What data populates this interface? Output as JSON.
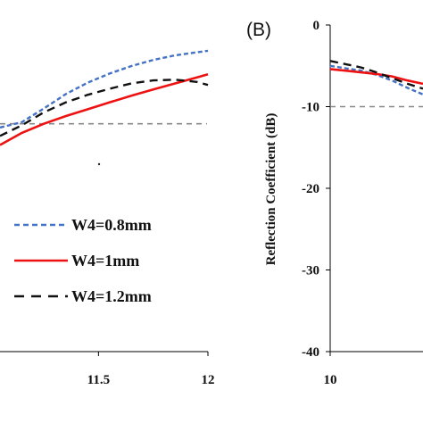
{
  "chart_data": [
    {
      "panel": "A",
      "type": "line",
      "title": "",
      "xlabel": "",
      "ylabel": "",
      "x_ticks": [
        "11.5",
        "12"
      ],
      "xlim": [
        11.05,
        12
      ],
      "ylim": [
        -40,
        3
      ],
      "reference_line": {
        "y": -10,
        "style": "dashed",
        "color": "#888888"
      },
      "series": [
        {
          "name": "W4=0.8mm",
          "color": "#4472c4",
          "dash": "dashed",
          "x": [
            11.05,
            11.15,
            11.25,
            11.35,
            11.45,
            11.55,
            11.65,
            11.75,
            11.85,
            11.95,
            12.0
          ],
          "y": [
            -10.5,
            -9.8,
            -8.0,
            -6.1,
            -4.6,
            -3.4,
            -2.4,
            -1.6,
            -1.0,
            -0.6,
            -0.4
          ]
        },
        {
          "name": "W4=1mm",
          "color": "#ee1111",
          "dash": "solid",
          "x": [
            11.05,
            11.15,
            11.25,
            11.35,
            11.45,
            11.55,
            11.65,
            11.75,
            11.85,
            11.95,
            12.0
          ],
          "y": [
            -12.8,
            -11.2,
            -10.0,
            -9.0,
            -8.1,
            -7.2,
            -6.3,
            -5.5,
            -4.7,
            -3.9,
            -3.5
          ]
        },
        {
          "name": "W4=1.2mm",
          "color": "#111111",
          "dash": "dashed",
          "x": [
            11.05,
            11.15,
            11.25,
            11.35,
            11.45,
            11.55,
            11.65,
            11.75,
            11.85,
            11.95,
            12.0
          ],
          "y": [
            -11.6,
            -10.2,
            -8.5,
            -7.2,
            -6.2,
            -5.4,
            -4.7,
            -4.3,
            -4.2,
            -4.5,
            -4.9
          ]
        }
      ],
      "legend": [
        "W4=0.8mm",
        "W4=1mm",
        "W4=1.2mm"
      ],
      "legend_position": "bottom-right"
    },
    {
      "panel": "B",
      "panel_label": "(B)",
      "type": "line",
      "title": "",
      "xlabel": "",
      "ylabel": "Reflection Coefficient (dB)",
      "x_ticks": [
        "10"
      ],
      "y_ticks": [
        "0",
        "-10",
        "-20",
        "-30",
        "-40"
      ],
      "xlim": [
        10,
        10.6
      ],
      "ylim": [
        -40,
        0
      ],
      "reference_line": {
        "y": -10,
        "style": "dashed",
        "color": "#888888"
      },
      "series": [
        {
          "name": "",
          "color": "#4472c4",
          "dash": "dashed",
          "x": [
            10.0,
            10.1,
            10.2,
            10.3,
            10.4,
            10.5,
            10.6
          ],
          "y": [
            -5.0,
            -5.3,
            -5.6,
            -6.1,
            -6.8,
            -7.7,
            -8.5
          ]
        },
        {
          "name": "",
          "color": "#ee1111",
          "dash": "solid",
          "x": [
            10.0,
            10.1,
            10.2,
            10.3,
            10.4,
            10.5,
            10.6
          ],
          "y": [
            -5.4,
            -5.6,
            -5.8,
            -6.0,
            -6.3,
            -6.8,
            -7.2
          ]
        },
        {
          "name": "",
          "color": "#111111",
          "dash": "dashed",
          "x": [
            10.0,
            10.1,
            10.2,
            10.3,
            10.4,
            10.5,
            10.6
          ],
          "y": [
            -4.4,
            -4.8,
            -5.2,
            -5.8,
            -6.5,
            -7.2,
            -7.8
          ]
        }
      ]
    }
  ]
}
